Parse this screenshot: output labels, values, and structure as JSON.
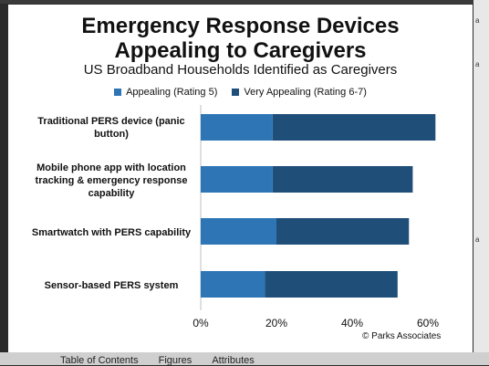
{
  "background_tabs": [
    "Table of Contents",
    "Figures",
    "Attributes"
  ],
  "background_right_fragments": [
    "a",
    "a",
    "a"
  ],
  "chart_data": {
    "type": "bar",
    "orientation": "horizontal",
    "stacked": true,
    "title_line1": "Emergency Response Devices",
    "title_line2": "Appealing to Caregivers",
    "subtitle": "US Broadband Households Identified as Caregivers",
    "categories": [
      "Traditional PERS device (panic button)",
      "Mobile phone app with location tracking & emergency response capability",
      "Smartwatch with PERS capability",
      "Sensor-based PERS system"
    ],
    "category_lines": [
      [
        "Traditional PERS device (panic",
        "button)"
      ],
      [
        "Mobile phone app with location",
        "tracking & emergency response",
        "capability"
      ],
      [
        "Smartwatch with PERS capability"
      ],
      [
        "Sensor-based PERS system"
      ]
    ],
    "series": [
      {
        "name": "Appealing (Rating 5)",
        "color": "#2e75b6",
        "values": [
          0.19,
          0.19,
          0.2,
          0.17
        ]
      },
      {
        "name": "Very Appealing (Rating 6-7)",
        "color": "#1f4e79",
        "values": [
          0.43,
          0.37,
          0.35,
          0.35
        ]
      }
    ],
    "xlim": [
      0,
      0.65
    ],
    "xticks": [
      0,
      0.2,
      0.4,
      0.6
    ],
    "xtick_labels": [
      "0%",
      "20%",
      "40%",
      "60%"
    ],
    "legend_position": "top",
    "grid": false,
    "source": "© Parks Associates"
  }
}
